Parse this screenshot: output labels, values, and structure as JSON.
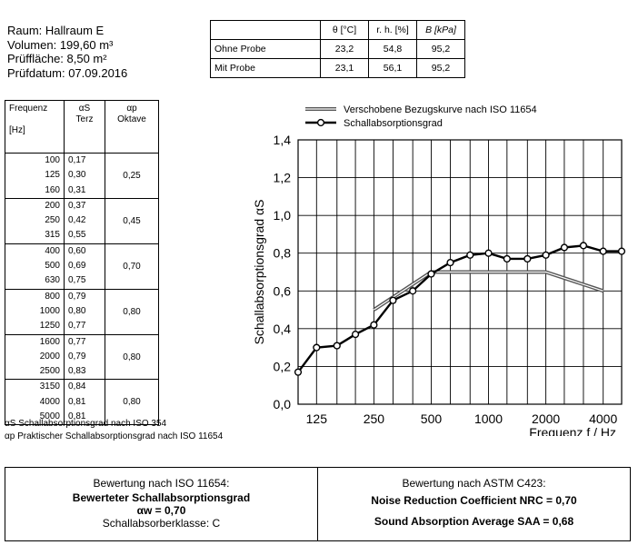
{
  "room": {
    "line1": "Raum: Hallraum E",
    "line2": "Volumen: 199,60 m³",
    "line3": "Prüffläche: 8,50 m²",
    "line4": "Prüfdatum: 07.09.2016"
  },
  "conditions": {
    "headers": [
      "θ [°C]",
      "r. h. [%]",
      "B [kPa]"
    ],
    "rows": [
      {
        "label": "Ohne Probe",
        "values": [
          "23,2",
          "54,8",
          "95,2"
        ]
      },
      {
        "label": "Mit Probe",
        "values": [
          "23,1",
          "56,1",
          "95,2"
        ]
      }
    ]
  },
  "freq_table": {
    "h_freq": "Frequenz",
    "h_freq_unit": "[Hz]",
    "h_as": "αS",
    "h_as_sub": "Terz",
    "h_ap": "αp",
    "h_ap_sub": "Oktave",
    "groups": [
      {
        "rows": [
          [
            "100",
            "0,17"
          ],
          [
            "125",
            "0,30"
          ],
          [
            "160",
            "0,31"
          ]
        ],
        "octave": "0,25"
      },
      {
        "rows": [
          [
            "200",
            "0,37"
          ],
          [
            "250",
            "0,42"
          ],
          [
            "315",
            "0,55"
          ]
        ],
        "octave": "0,45"
      },
      {
        "rows": [
          [
            "400",
            "0,60"
          ],
          [
            "500",
            "0,69"
          ],
          [
            "630",
            "0,75"
          ]
        ],
        "octave": "0,70"
      },
      {
        "rows": [
          [
            "800",
            "0,79"
          ],
          [
            "1000",
            "0,80"
          ],
          [
            "1250",
            "0,77"
          ]
        ],
        "octave": "0,80"
      },
      {
        "rows": [
          [
            "1600",
            "0,77"
          ],
          [
            "2000",
            "0,79"
          ],
          [
            "2500",
            "0,83"
          ]
        ],
        "octave": "0,80"
      },
      {
        "rows": [
          [
            "3150",
            "0,84"
          ],
          [
            "4000",
            "0,81"
          ],
          [
            "5000",
            "0,81"
          ]
        ],
        "octave": "0,80"
      }
    ]
  },
  "notes": {
    "as_note": "αS Schallabsorptionsgrad nach ISO 354",
    "ap_note": "αp Praktischer Schallabsorptionsgrad nach ISO 11654"
  },
  "evaluation": {
    "left_title": "Bewertung nach ISO 11654:",
    "left_bold": "Bewerteter Schallabsorptionsgrad",
    "left_value": "αw = 0,70",
    "left_class": "Schallabsorberklasse: C",
    "right_title": "Bewertung nach ASTM C423:",
    "right_nrc": "Noise Reduction Coefficient NRC = 0,70",
    "right_saa": "Sound Absorption Average SAA = 0,68"
  },
  "chart_data": {
    "type": "line",
    "xscale": "log",
    "xlabel": "Frequenz f / Hz",
    "ylabel": "Schallabsorptionsgrad αS",
    "ylim": [
      0,
      1.4
    ],
    "xlim": [
      100,
      5000
    ],
    "yticks": [
      "0,0",
      "0,2",
      "0,4",
      "0,6",
      "0,8",
      "1,0",
      "1,2",
      "1,4"
    ],
    "xticks": [
      "125",
      "250",
      "500",
      "1000",
      "2000",
      "4000"
    ],
    "grid": true,
    "legend_position": "top",
    "series": [
      {
        "name": "Verschobene Bezugskurve nach ISO 11654",
        "style": "double-line",
        "x": [
          250,
          500,
          2000,
          4000
        ],
        "values": [
          0.5,
          0.7,
          0.7,
          0.6
        ]
      },
      {
        "name": "Schallabsorptionsgrad",
        "style": "line-markers",
        "x": [
          100,
          125,
          160,
          200,
          250,
          315,
          400,
          500,
          630,
          800,
          1000,
          1250,
          1600,
          2000,
          2500,
          3150,
          4000,
          5000
        ],
        "values": [
          0.17,
          0.3,
          0.31,
          0.37,
          0.42,
          0.55,
          0.6,
          0.69,
          0.75,
          0.79,
          0.8,
          0.77,
          0.77,
          0.79,
          0.83,
          0.84,
          0.81,
          0.81
        ]
      }
    ]
  }
}
